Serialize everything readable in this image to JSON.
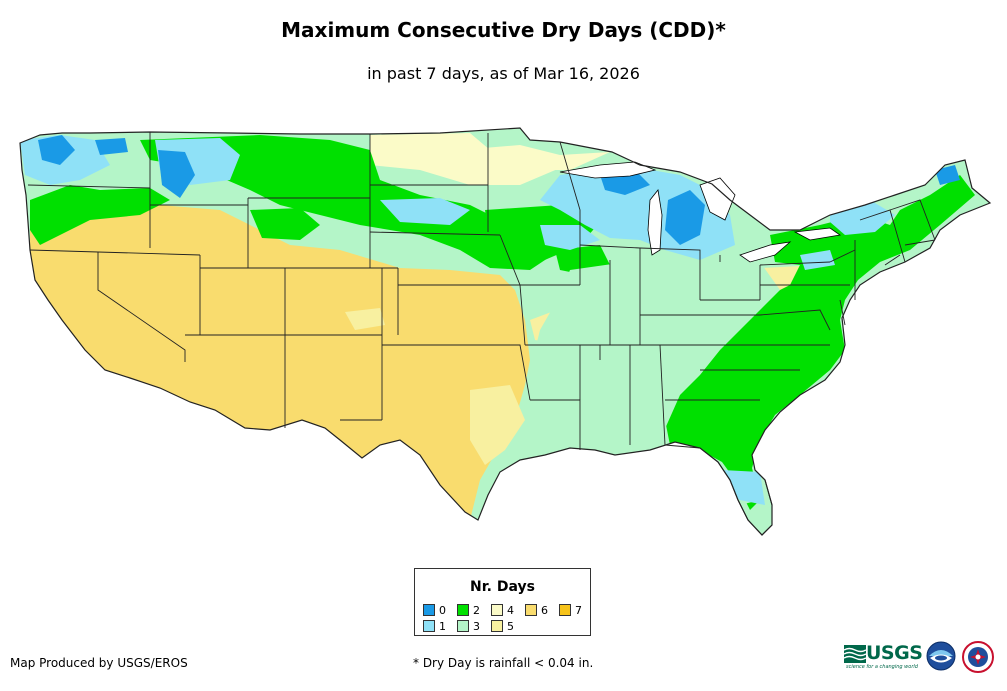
{
  "title": "Maximum Consecutive Dry Days (CDD)*",
  "subtitle": "in past 7 days, as of Mar 16, 2026",
  "legend": {
    "title": "Nr. Days",
    "items": [
      {
        "label": "0",
        "color": "#1a9ae6"
      },
      {
        "label": "1",
        "color": "#8fe1f7"
      },
      {
        "label": "2",
        "color": "#00e000"
      },
      {
        "label": "3",
        "color": "#b4f5c8"
      },
      {
        "label": "4",
        "color": "#fbfbc8"
      },
      {
        "label": "5",
        "color": "#f8f0a0"
      },
      {
        "label": "6",
        "color": "#f9dc6e"
      },
      {
        "label": "7",
        "color": "#f6c31a"
      }
    ]
  },
  "credit": "Map Produced by USGS/EROS",
  "footnote": "* Dry Day is rainfall < 0.04 in.",
  "logos": {
    "usgs": {
      "name": "usgs-logo",
      "text": "USGS",
      "tagline": "science for a changing world"
    },
    "noaa": {
      "name": "noaa-logo"
    },
    "nws": {
      "name": "nws-logo"
    }
  },
  "map_regions": [
    {
      "region": "Southwest / Great Basin / southern Plains",
      "days": "6"
    },
    {
      "region": "Southeast and Mid-Atlantic coast",
      "days": "2"
    },
    {
      "region": "Ohio Valley / lower Mississippi",
      "days": "3"
    },
    {
      "region": "Upper Midwest / Great Lakes",
      "days": "1"
    },
    {
      "region": "Northern Rockies / Pacific Northwest",
      "days": "2"
    }
  ]
}
